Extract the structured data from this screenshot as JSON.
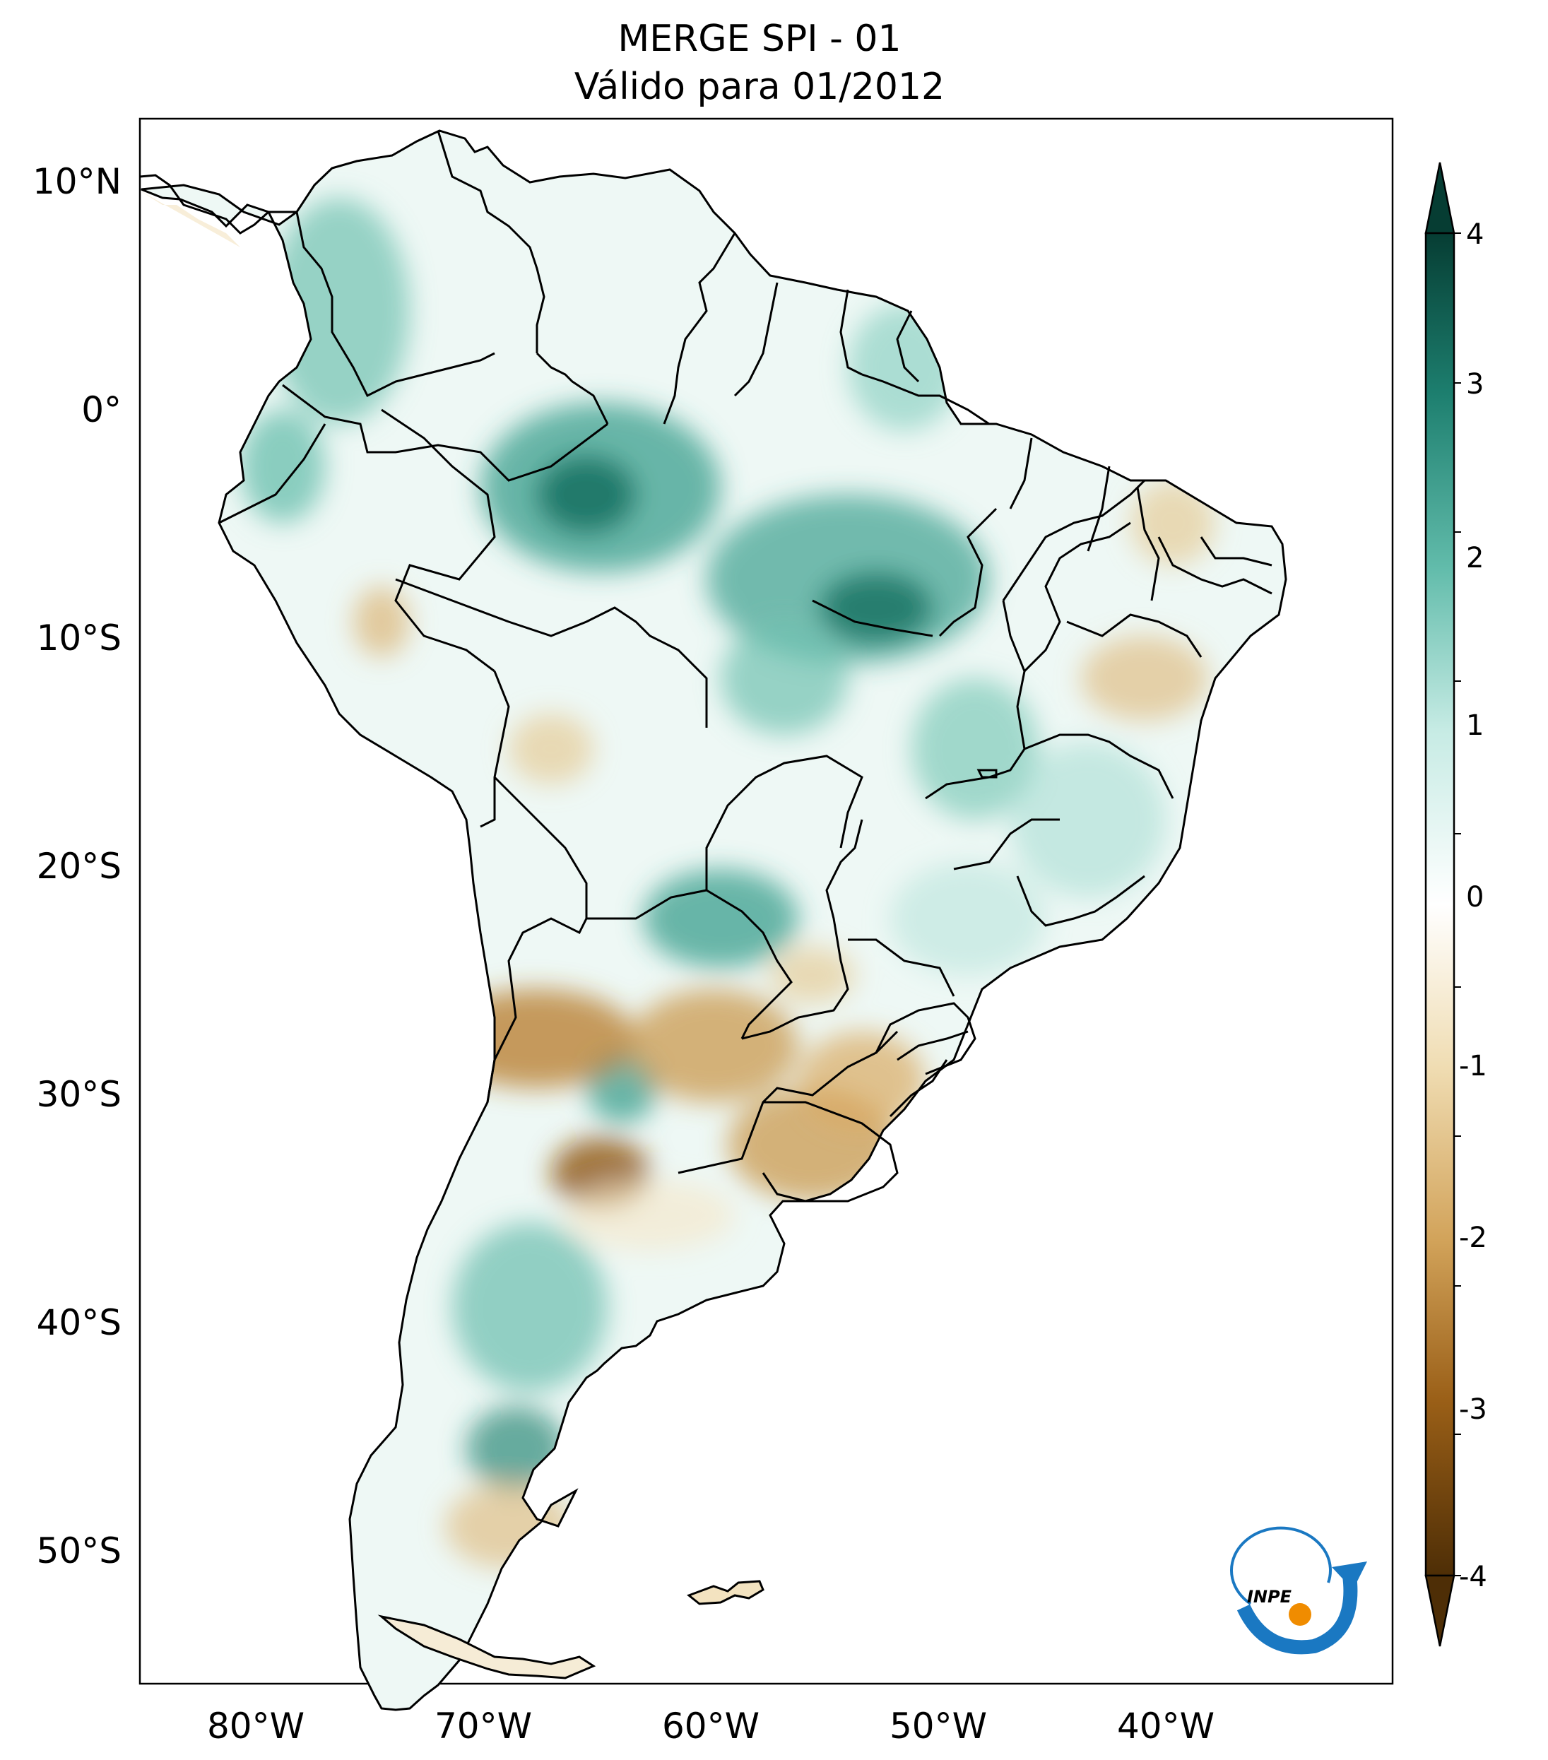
{
  "title": {
    "line1": "MERGE   SPI - 01",
    "line2": "Válido para 01/2012"
  },
  "map": {
    "lat_labels": [
      "10°N",
      "0°",
      "10°S",
      "20°S",
      "30°S",
      "40°S",
      "50°S"
    ],
    "lon_labels": [
      "80°W",
      "70°W",
      "60°W",
      "50°W",
      "40°W"
    ]
  },
  "colorbar": {
    "ticks": [
      "4",
      "3",
      "2",
      "1",
      "0",
      "-1",
      "-2",
      "-3",
      "-4"
    ],
    "colors": {
      "max": "#063d33",
      "high": "#1d7f6f",
      "mid_high": "#62bcab",
      "low_high": "#c6ebe4",
      "zero": "#ffffff",
      "low_neg": "#f0ddb3",
      "mid_neg": "#d2a35a",
      "high_neg": "#9a5f17",
      "min": "#4e2e06"
    }
  },
  "logo": {
    "text": "INPE",
    "colors": {
      "blue": "#1a78c2",
      "orange": "#f08c00"
    }
  }
}
